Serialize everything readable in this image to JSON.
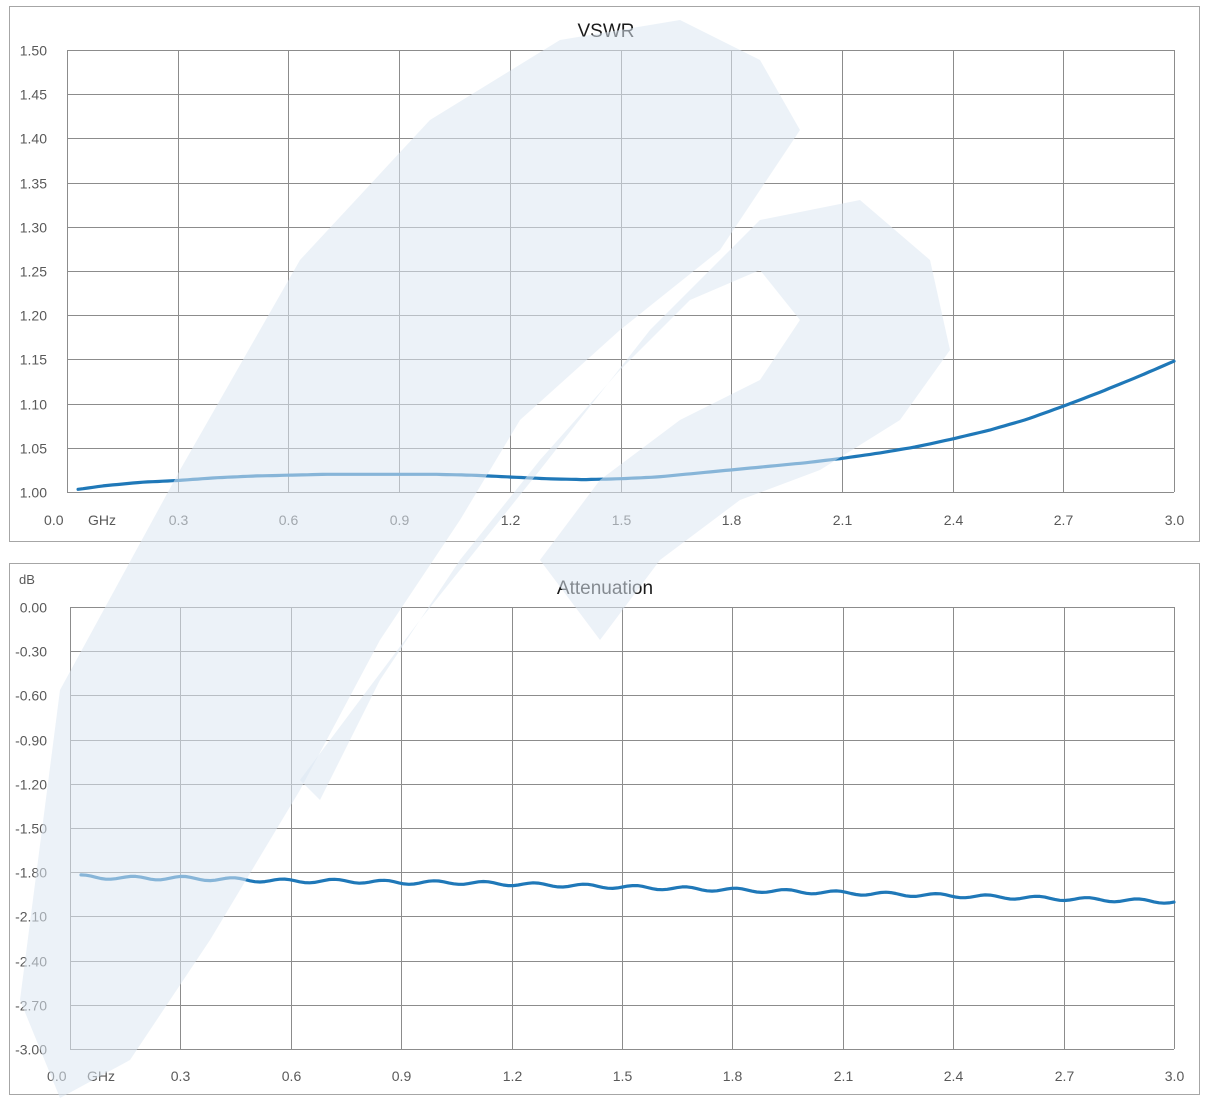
{
  "colors": {
    "series": "#1f78b8",
    "grid": "#8c8c8c",
    "frame": "#a6a6a6",
    "watermark": "#dce8f3"
  },
  "watermark_icon": "company-logo-watermark",
  "chart_data": [
    {
      "type": "line",
      "title": "VSWR",
      "ylabel": "",
      "xlabel": "",
      "x_unit": "GHz",
      "x_ticks": [
        "0.0",
        "0.3",
        "0.6",
        "0.9",
        "1.2",
        "1.5",
        "1.8",
        "2.1",
        "2.4",
        "2.7",
        "3.0"
      ],
      "y_ticks": [
        "1.50",
        "1.45",
        "1.40",
        "1.35",
        "1.30",
        "1.25",
        "1.20",
        "1.15",
        "1.10",
        "1.05",
        "1.00"
      ],
      "xlim": [
        0.0,
        3.0
      ],
      "ylim": [
        1.0,
        1.5
      ],
      "grid": true,
      "series": [
        {
          "x": [
            0.03,
            0.1,
            0.2,
            0.3,
            0.4,
            0.5,
            0.6,
            0.7,
            0.8,
            0.9,
            1.0,
            1.1,
            1.2,
            1.3,
            1.4,
            1.5,
            1.6,
            1.7,
            1.8,
            1.9,
            2.0,
            2.1,
            2.2,
            2.3,
            2.4,
            2.5,
            2.6,
            2.7,
            2.8,
            2.9,
            3.0
          ],
          "y": [
            1.003,
            1.007,
            1.011,
            1.013,
            1.016,
            1.018,
            1.019,
            1.02,
            1.02,
            1.02,
            1.02,
            1.019,
            1.017,
            1.015,
            1.014,
            1.015,
            1.017,
            1.021,
            1.025,
            1.029,
            1.033,
            1.038,
            1.044,
            1.051,
            1.06,
            1.07,
            1.082,
            1.097,
            1.113,
            1.13,
            1.148
          ]
        }
      ]
    },
    {
      "type": "line",
      "title": "Attenuation",
      "ylabel": "dB",
      "xlabel": "",
      "x_unit": "GHz",
      "x_ticks": [
        "0.0",
        "0.3",
        "0.6",
        "0.9",
        "1.2",
        "1.5",
        "1.8",
        "2.1",
        "2.4",
        "2.7",
        "3.0"
      ],
      "y_ticks": [
        "0.00",
        "-0.30",
        "-0.60",
        "-0.90",
        "-1.20",
        "-1.50",
        "-1.80",
        "-2.10",
        "-2.40",
        "-2.70",
        "-3.00"
      ],
      "xlim": [
        0.0,
        3.0
      ],
      "ylim": [
        -3.0,
        0.0
      ],
      "grid": true,
      "series": [
        {
          "x": [
            0.03,
            0.15,
            0.3,
            0.45,
            0.6,
            0.75,
            0.9,
            1.05,
            1.2,
            1.35,
            1.5,
            1.65,
            1.8,
            1.95,
            2.1,
            2.25,
            2.4,
            2.55,
            2.7,
            2.85,
            3.0
          ],
          "y": [
            -1.83,
            -1.84,
            -1.84,
            -1.85,
            -1.86,
            -1.86,
            -1.87,
            -1.87,
            -1.88,
            -1.89,
            -1.9,
            -1.91,
            -1.92,
            -1.93,
            -1.94,
            -1.95,
            -1.96,
            -1.97,
            -1.98,
            -1.99,
            -2.0
          ]
        }
      ]
    }
  ]
}
